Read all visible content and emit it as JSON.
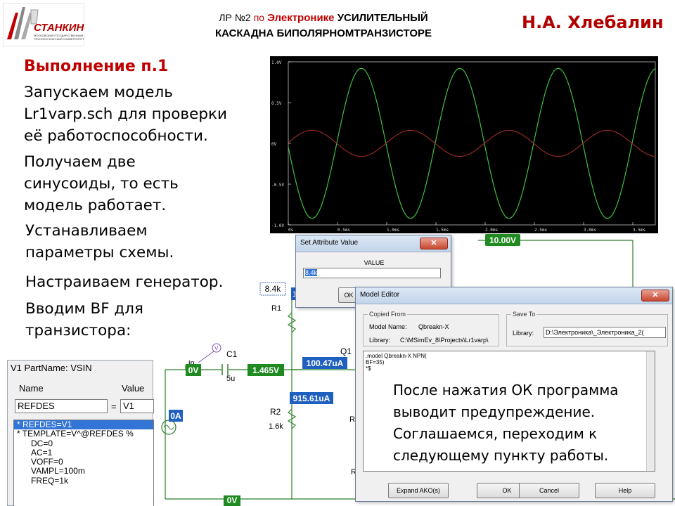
{
  "header": {
    "logo_text": "СТАНКИН",
    "logo_subtitle": "МОСКОВСКИЙ ГОСУДАРСТВЕННЫЙ ТЕХНОЛОГИЧЕСКИЙ УНИВЕРСИТЕТ",
    "title_prefix": "ЛР №2",
    "title_po": "по",
    "title_subject": "Электронике",
    "title_rest1": "УСИЛИТЕЛЬНЫЙ",
    "title_line2": "КАСКАДНА БИПОЛЯРНОМТРАНЗИСТОРЕ",
    "author": "Н.А. Хлебалин"
  },
  "left": {
    "heading": "Выполнение п.1",
    "p1": [
      "Запускаем модель",
      "Lr1varp.sch для проверки",
      "её работоспособности."
    ],
    "p2": [
      "Получаем две",
      "синусоиды, то есть",
      "модель работает."
    ],
    "p3": [
      "Устанавливаем",
      "параметры схемы."
    ],
    "p4": [
      "Настраиваем генератор."
    ],
    "p5": [
      "Вводим BF для",
      "транзистора:"
    ]
  },
  "scope": {
    "y_ticks": [
      "1.0V",
      "0.5V",
      "0V",
      "-0.5V",
      "-1.0V"
    ],
    "x_ticks": [
      "0s",
      "0.5ms",
      "1.0ms",
      "1.5ms",
      "2.0ms",
      "2.5ms",
      "3.0ms",
      "3.5ms"
    ],
    "green_color": "#3fbf3f",
    "red_color": "#a02a2a"
  },
  "circuit": {
    "supply": "10.00V",
    "r1_value": "8.4k",
    "r1_name": "R1",
    "r1_current_tag": "1",
    "c1_name": "C1",
    "c1_value": "5u",
    "in_label": "in",
    "v_label": "V",
    "node_in_v": "0V",
    "node_base_v": "1.465V",
    "base_current": "100.47uA",
    "q1_name": "Q1",
    "r2_current": "915.61uA",
    "r2_name": "R2",
    "r2_value": "1.6k",
    "src_current": "0A",
    "ground_v": "0V",
    "r_partial": "R",
    "r_partial2": "R"
  },
  "set_attr": {
    "title": "Set Attribute Value",
    "value_label": "VALUE",
    "value": "8.4k",
    "ok": "OK"
  },
  "model_editor": {
    "title": "Model Editor",
    "copied_from": "Copied From",
    "model_name_label": "Model Name:",
    "model_name": "Qbreakn-X",
    "library_label": "Library:",
    "library_from": "C:\\MSimEv_8\\Projects\\Lr1varp\\",
    "save_to": "Save To",
    "library_to_label": "Library:",
    "library_to": "D:\\Электроника\\_Электроника_2(",
    "code": [
      ".model Qbreakn-X NPN(",
      "BF=35)",
      "*$"
    ],
    "note": [
      "После нажатия ОК программа",
      "выводит предупреждение.",
      "Соглашаемся, переходим к",
      "следующему пункту работы."
    ],
    "btn_expand": "Expand AKO(s)",
    "btn_ok": "OK",
    "btn_cancel": "Cancel",
    "btn_help": "Help"
  },
  "part_panel": {
    "title": "V1   PartName: VSIN",
    "col_name": "Name",
    "col_value": "Value",
    "name_input": "REFDES",
    "eq": "=",
    "value_input": "V1",
    "items": [
      "*   REFDES=V1",
      "*   TEMPLATE=V^@REFDES %",
      "DC=0",
      "AC=1",
      "VOFF=0",
      "VAMPL=100m",
      "FREQ=1k"
    ]
  }
}
